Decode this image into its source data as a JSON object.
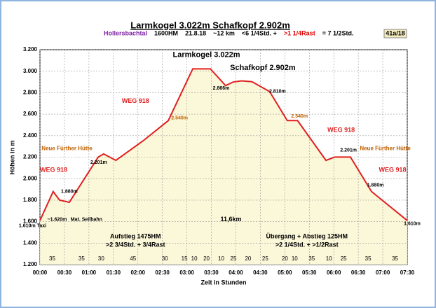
{
  "chart_data": {
    "type": "line",
    "title": "Larmkogel 3.022m  Schafkopf 2.902m",
    "subtitle": [
      {
        "text": "Hollersbachtal",
        "color": "#7b1fa2"
      },
      {
        "text": "1600HM",
        "color": "#000"
      },
      {
        "text": "21.8.18",
        "color": "#000"
      },
      {
        "text": "~12 km",
        "color": "#000"
      },
      {
        "text": "<6 1/4Std. +",
        "color": "#000"
      },
      {
        "text": ">1 1/4Rast",
        "color": "#e00000"
      },
      {
        "text": "= 7 1/2Std.",
        "color": "#000"
      }
    ],
    "badge": "41a/18",
    "y_label": "Höhen in m",
    "x_label": "Zeit in Stunden",
    "color": "#e02020",
    "fill": "#fbf7d9",
    "x": [
      0,
      0.27,
      0.4,
      0.6,
      1.19,
      1.3,
      1.55,
      2.1,
      2.62,
      3.12,
      3.48,
      3.79,
      3.95,
      4.12,
      4.33,
      4.69,
      5.05,
      5.26,
      5.84,
      6.02,
      6.34,
      6.77,
      7.5
    ],
    "values": [
      1610,
      1880,
      1800,
      1780,
      2201,
      2230,
      2170,
      2350,
      2540,
      3022,
      3022,
      2866,
      2900,
      2910,
      2902,
      2810,
      2540,
      2540,
      2170,
      2201,
      2201,
      1880,
      1610
    ],
    "xlim": [
      0,
      7.5
    ],
    "ylim": [
      1200,
      3200
    ],
    "xticks": [
      {
        "value": 0,
        "label": "00:00"
      },
      {
        "value": 0.5,
        "label": "00:30"
      },
      {
        "value": 1,
        "label": "01:00"
      },
      {
        "value": 1.5,
        "label": "01:30"
      },
      {
        "value": 2,
        "label": "02:00"
      },
      {
        "value": 2.5,
        "label": "02:30"
      },
      {
        "value": 3,
        "label": "03:00"
      },
      {
        "value": 3.5,
        "label": "03:30"
      },
      {
        "value": 4,
        "label": "04:00"
      },
      {
        "value": 4.5,
        "label": "04:30"
      },
      {
        "value": 5,
        "label": "05:00"
      },
      {
        "value": 5.5,
        "label": "05:30"
      },
      {
        "value": 6,
        "label": "06:00"
      },
      {
        "value": 6.5,
        "label": "06:30"
      },
      {
        "value": 7,
        "label": "07:00"
      },
      {
        "value": 7.5,
        "label": "07:30"
      }
    ],
    "yticks": [
      {
        "value": 1200,
        "label": "1.200"
      },
      {
        "value": 1400,
        "label": "1.400"
      },
      {
        "value": 1600,
        "label": "1.600"
      },
      {
        "value": 1800,
        "label": "1.800"
      },
      {
        "value": 2000,
        "label": "2.000"
      },
      {
        "value": 2200,
        "label": "2.200"
      },
      {
        "value": 2400,
        "label": "2.400"
      },
      {
        "value": 2600,
        "label": "2.600"
      },
      {
        "value": 2800,
        "label": "2.800"
      },
      {
        "value": 3000,
        "label": "3.000"
      },
      {
        "value": 3200,
        "label": "3.200"
      }
    ],
    "grid": true,
    "annotations": [
      {
        "text": "Larmkogel 3.022m",
        "x": 3.4,
        "y": 3150,
        "color": "#000",
        "size": 11
      },
      {
        "text": "Schafkopf 2.902m",
        "x": 4.55,
        "y": 3030,
        "color": "#000",
        "size": 11
      },
      {
        "text": "WEG 918",
        "x": 1.95,
        "y": 2720,
        "color": "#e02020",
        "size": 9
      },
      {
        "text": "WEG 918",
        "x": 6.15,
        "y": 2450,
        "color": "#e02020",
        "size": 9
      },
      {
        "text": "WEG 918",
        "x": 0.28,
        "y": 2080,
        "color": "#e02020",
        "size": 9
      },
      {
        "text": "WEG 918",
        "x": 7.2,
        "y": 2080,
        "color": "#e02020",
        "size": 9
      },
      {
        "text": "Neue Fürther Hütte",
        "x": 0.55,
        "y": 2280,
        "color": "#c06000",
        "size": 8
      },
      {
        "text": "Neue Fürther Hütte",
        "x": 7.05,
        "y": 2280,
        "color": "#c06000",
        "size": 8
      },
      {
        "text": "2.201m",
        "x": 1.2,
        "y": 2150,
        "color": "#000",
        "size": 7
      },
      {
        "text": "2.201m",
        "x": 6.3,
        "y": 2265,
        "color": "#000",
        "size": 7
      },
      {
        "text": "2.540m",
        "x": 2.85,
        "y": 2565,
        "color": "#c06000",
        "size": 7
      },
      {
        "text": "2.540m",
        "x": 5.3,
        "y": 2580,
        "color": "#c06000",
        "size": 7
      },
      {
        "text": "2.866m",
        "x": 3.7,
        "y": 2840,
        "color": "#000",
        "size": 7
      },
      {
        "text": "2.810m",
        "x": 4.85,
        "y": 2810,
        "color": "#000",
        "size": 7
      },
      {
        "text": "1.880m",
        "x": 0.6,
        "y": 1880,
        "color": "#000",
        "size": 7
      },
      {
        "text": "1.880m",
        "x": 6.85,
        "y": 1940,
        "color": "#000",
        "size": 7
      },
      {
        "text": "~1.620m",
        "x": 0.35,
        "y": 1620,
        "color": "#000",
        "size": 7
      },
      {
        "text": "Mat. Seilbahn",
        "x": 0.95,
        "y": 1620,
        "color": "#000",
        "size": 7
      },
      {
        "text": "1.610m Taxi",
        "x": -0.15,
        "y": 1560,
        "color": "#000",
        "size": 7
      },
      {
        "text": "1.610m",
        "x": 7.6,
        "y": 1580,
        "color": "#000",
        "size": 7
      },
      {
        "text": "11,6km",
        "x": 3.9,
        "y": 1620,
        "color": "#000",
        "size": 9
      },
      {
        "text": "Aufstieg 1475HM",
        "x": 1.95,
        "y": 1460,
        "color": "#000",
        "size": 9
      },
      {
        "text": ">2 3/4Std. + 3/4Rast",
        "x": 1.95,
        "y": 1380,
        "color": "#000",
        "size": 9
      },
      {
        "text": "Übergang + Abstieg 125HM",
        "x": 5.45,
        "y": 1460,
        "color": "#000",
        "size": 9
      },
      {
        "text": ">2 1/4Std. + >1/2Rast",
        "x": 5.45,
        "y": 1380,
        "color": "#000",
        "size": 9
      }
    ],
    "segments": [
      {
        "text": "35",
        "x": 0.25
      },
      {
        "text": "35",
        "x": 0.85
      },
      {
        "text": "30",
        "x": 1.25
      },
      {
        "text": "45",
        "x": 1.9
      },
      {
        "text": "30",
        "x": 2.55
      },
      {
        "text": "15",
        "x": 2.95
      },
      {
        "text": "10",
        "x": 3.15
      },
      {
        "text": "20",
        "x": 3.4
      },
      {
        "text": "10",
        "x": 3.7
      },
      {
        "text": "25",
        "x": 3.95
      },
      {
        "text": "20",
        "x": 4.25
      },
      {
        "text": "25",
        "x": 4.6
      },
      {
        "text": "20",
        "x": 5
      },
      {
        "text": "10",
        "x": 5.2
      },
      {
        "text": "35",
        "x": 5.55
      },
      {
        "text": "10",
        "x": 5.9
      },
      {
        "text": "25",
        "x": 6.2
      },
      {
        "text": "35",
        "x": 6.7
      },
      {
        "text": "35",
        "x": 7.25
      }
    ]
  }
}
